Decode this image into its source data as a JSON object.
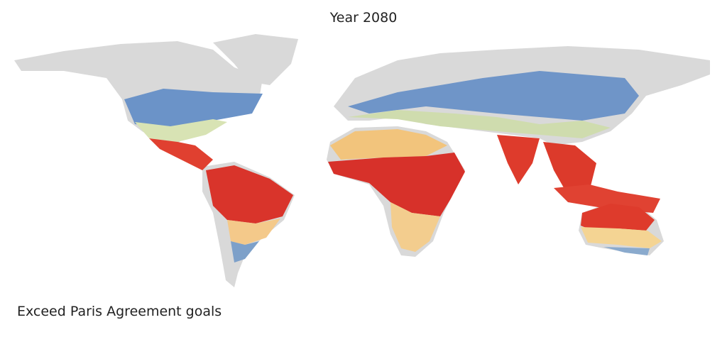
{
  "title": "Year 2080",
  "caption": "Exceed Paris Agreement goals"
}
